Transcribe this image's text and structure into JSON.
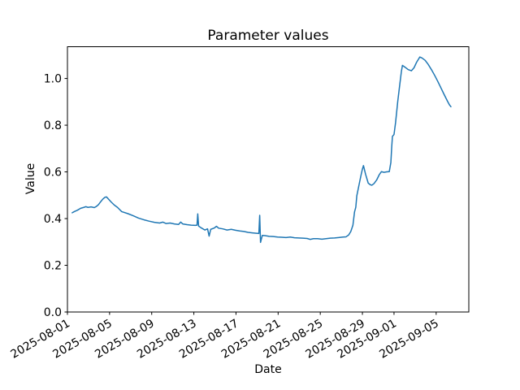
{
  "chart_data": {
    "type": "line",
    "title": "Parameter values",
    "xlabel": "Date",
    "ylabel": "Value",
    "grid": false,
    "legend": false,
    "x_unit": "days since 2025-08-01 00:00",
    "xlim": [
      0,
      38.1
    ],
    "ylim": [
      0,
      1.136
    ],
    "x_tick_rotation_deg": 30,
    "x_ticks": [
      {
        "pos": 0,
        "label": "2025-08-01"
      },
      {
        "pos": 4,
        "label": "2025-08-05"
      },
      {
        "pos": 8,
        "label": "2025-08-09"
      },
      {
        "pos": 12,
        "label": "2025-08-13"
      },
      {
        "pos": 16,
        "label": "2025-08-17"
      },
      {
        "pos": 20,
        "label": "2025-08-21"
      },
      {
        "pos": 24,
        "label": "2025-08-25"
      },
      {
        "pos": 28,
        "label": "2025-08-29"
      },
      {
        "pos": 31,
        "label": "2025-09-01"
      },
      {
        "pos": 35,
        "label": "2025-09-05"
      }
    ],
    "y_ticks": [
      {
        "pos": 0.0,
        "label": "0.0"
      },
      {
        "pos": 0.2,
        "label": "0.2"
      },
      {
        "pos": 0.4,
        "label": "0.4"
      },
      {
        "pos": 0.6,
        "label": "0.6"
      },
      {
        "pos": 0.8,
        "label": "0.8"
      },
      {
        "pos": 1.0,
        "label": "1.0"
      }
    ],
    "colors": {
      "line": "#1f77b4",
      "spine": "#000000",
      "text": "#000000",
      "background": "#ffffff"
    },
    "line_width": 1.5,
    "series": [
      {
        "color": "#1f77b4",
        "x": [
          0.45,
          0.65,
          0.95,
          1.25,
          1.55,
          1.75,
          1.95,
          2.25,
          2.55,
          2.75,
          2.95,
          3.15,
          3.35,
          3.55,
          3.7,
          3.85,
          4.15,
          4.45,
          4.75,
          5.15,
          5.75,
          6.25,
          6.75,
          7.25,
          7.75,
          8.25,
          8.75,
          9.05,
          9.35,
          9.75,
          10.15,
          10.55,
          10.75,
          10.95,
          11.35,
          11.75,
          12.15,
          12.3,
          12.37,
          12.45,
          12.75,
          13.05,
          13.3,
          13.45,
          13.6,
          13.95,
          14.15,
          14.35,
          14.75,
          15.15,
          15.55,
          15.95,
          16.35,
          16.75,
          17.15,
          17.55,
          17.95,
          18.17,
          18.25,
          18.33,
          18.5,
          18.75,
          19.15,
          19.55,
          19.95,
          20.35,
          20.75,
          21.15,
          21.55,
          21.95,
          22.35,
          22.75,
          23.05,
          23.35,
          23.75,
          24.15,
          24.55,
          24.95,
          25.35,
          25.75,
          26.15,
          26.45,
          26.7,
          26.9,
          27.1,
          27.25,
          27.37,
          27.47,
          27.65,
          27.85,
          28.0,
          28.1,
          28.3,
          28.55,
          28.75,
          28.9,
          29.1,
          29.35,
          29.6,
          29.8,
          30.05,
          30.3,
          30.55,
          30.7,
          30.78,
          30.85,
          31.0,
          31.15,
          31.35,
          31.55,
          31.7,
          31.8,
          32.05,
          32.35,
          32.65,
          32.9,
          33.15,
          33.45,
          33.65,
          33.95,
          34.25,
          34.55,
          34.85,
          35.15,
          35.45,
          35.75,
          36.05,
          36.25,
          36.4
        ],
        "y": [
          0.425,
          0.43,
          0.436,
          0.444,
          0.448,
          0.451,
          0.448,
          0.45,
          0.447,
          0.452,
          0.46,
          0.472,
          0.483,
          0.491,
          0.493,
          0.486,
          0.471,
          0.458,
          0.448,
          0.43,
          0.421,
          0.412,
          0.402,
          0.395,
          0.389,
          0.384,
          0.381,
          0.385,
          0.379,
          0.381,
          0.377,
          0.375,
          0.385,
          0.377,
          0.374,
          0.372,
          0.371,
          0.372,
          0.42,
          0.368,
          0.359,
          0.351,
          0.356,
          0.325,
          0.354,
          0.36,
          0.367,
          0.359,
          0.356,
          0.351,
          0.354,
          0.35,
          0.347,
          0.345,
          0.341,
          0.339,
          0.337,
          0.336,
          0.414,
          0.298,
          0.328,
          0.327,
          0.324,
          0.323,
          0.321,
          0.32,
          0.319,
          0.321,
          0.318,
          0.317,
          0.316,
          0.315,
          0.311,
          0.314,
          0.314,
          0.312,
          0.314,
          0.316,
          0.317,
          0.319,
          0.321,
          0.322,
          0.33,
          0.345,
          0.372,
          0.428,
          0.448,
          0.498,
          0.538,
          0.582,
          0.612,
          0.627,
          0.59,
          0.552,
          0.545,
          0.543,
          0.55,
          0.565,
          0.588,
          0.601,
          0.598,
          0.6,
          0.601,
          0.64,
          0.705,
          0.752,
          0.76,
          0.812,
          0.9,
          0.975,
          1.03,
          1.056,
          1.048,
          1.038,
          1.033,
          1.046,
          1.07,
          1.092,
          1.088,
          1.078,
          1.06,
          1.038,
          1.014,
          0.988,
          0.96,
          0.932,
          0.905,
          0.888,
          0.879
        ]
      }
    ]
  }
}
